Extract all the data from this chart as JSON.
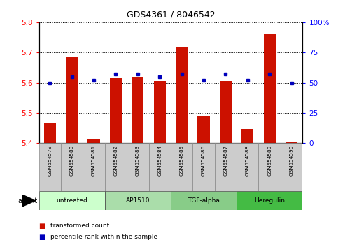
{
  "title": "GDS4361 / 8046542",
  "samples": [
    "GSM554579",
    "GSM554580",
    "GSM554581",
    "GSM554582",
    "GSM554583",
    "GSM554584",
    "GSM554585",
    "GSM554586",
    "GSM554587",
    "GSM554588",
    "GSM554589",
    "GSM554590"
  ],
  "red_values": [
    5.465,
    5.685,
    5.415,
    5.615,
    5.62,
    5.605,
    5.72,
    5.49,
    5.605,
    5.448,
    5.76,
    5.405
  ],
  "blue_values": [
    50,
    55,
    52,
    57,
    57,
    55,
    57,
    52,
    57,
    52,
    57,
    50
  ],
  "ylim_left": [
    5.4,
    5.8
  ],
  "ylim_right": [
    0,
    100
  ],
  "yticks_left": [
    5.4,
    5.5,
    5.6,
    5.7,
    5.8
  ],
  "yticks_right": [
    0,
    25,
    50,
    75,
    100
  ],
  "groups": [
    {
      "label": "untreated",
      "start": 0,
      "end": 3,
      "color": "#ccffcc"
    },
    {
      "label": "AP1510",
      "start": 3,
      "end": 6,
      "color": "#aaddaa"
    },
    {
      "label": "TGF-alpha",
      "start": 6,
      "end": 9,
      "color": "#88cc88"
    },
    {
      "label": "Heregulin",
      "start": 9,
      "end": 12,
      "color": "#44bb44"
    }
  ],
  "bar_color": "#cc1100",
  "dot_color": "#0000bb",
  "legend_red_label": "transformed count",
  "legend_blue_label": "percentile rank within the sample",
  "agent_label": "agent",
  "bar_width": 0.55
}
